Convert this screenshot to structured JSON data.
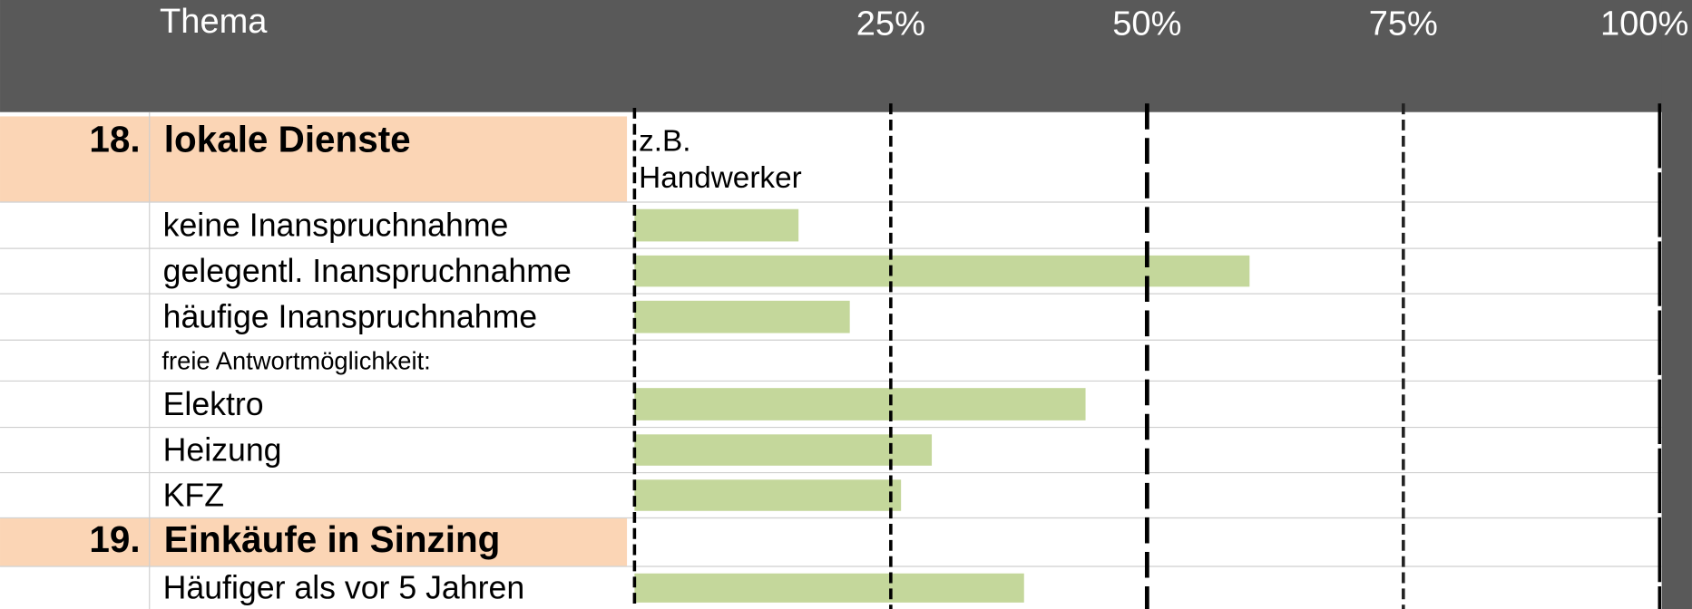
{
  "header": {
    "title": "Thema"
  },
  "sections": [
    {
      "number": "18.",
      "title": "lokale Dienste",
      "note": "z.B. Handwerker"
    },
    {
      "number": "19.",
      "title": "Einkäufe in Sinzing"
    }
  ],
  "subheading": "freie Antwortmöglichkeit:",
  "chart_data": {
    "type": "bar",
    "orientation": "horizontal",
    "categories": [
      "keine Inanspruchnahme",
      "gelegentl. Inanspruchnahme",
      "häufige Inanspruchnahme",
      "Elektro",
      "Heizung",
      "KFZ",
      "Häufiger als vor 5 Jahren"
    ],
    "values": [
      16,
      60,
      21,
      44,
      29,
      26,
      38
    ],
    "color": "#c4d79b",
    "xlim": [
      0,
      100
    ],
    "xticks": [
      {
        "value": 25,
        "label": "25%"
      },
      {
        "value": 50,
        "label": "50%"
      },
      {
        "value": 75,
        "label": "75%"
      },
      {
        "value": 100,
        "label": "100%"
      }
    ]
  }
}
